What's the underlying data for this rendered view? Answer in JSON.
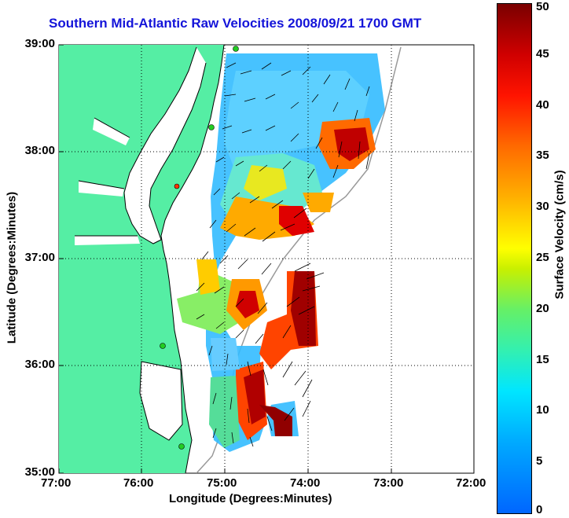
{
  "title": "Southern Mid-Atlantic Raw Velocities 2008/09/21 1700 GMT",
  "xlabel": "Longitude (Degrees:Minutes)",
  "ylabel": "Latitude (Degrees:Minutes)",
  "colorbar": {
    "label": "Surface Velocity (cm/s)",
    "ticks": [
      "0",
      "5",
      "10",
      "15",
      "20",
      "25",
      "30",
      "35",
      "40",
      "45",
      "50"
    ],
    "min": 0,
    "max": 50
  },
  "x_ticks": [
    "77:00",
    "76:00",
    "75:00",
    "74:00",
    "73:00",
    "72:00"
  ],
  "y_ticks": [
    "39:00",
    "38:00",
    "37:00",
    "36:00",
    "35:00"
  ],
  "colors": {
    "land": "#55eea4",
    "water": "#ffffff",
    "title": "#1414d9",
    "station": "#22cc22",
    "station_alt": "#ff3300"
  }
}
